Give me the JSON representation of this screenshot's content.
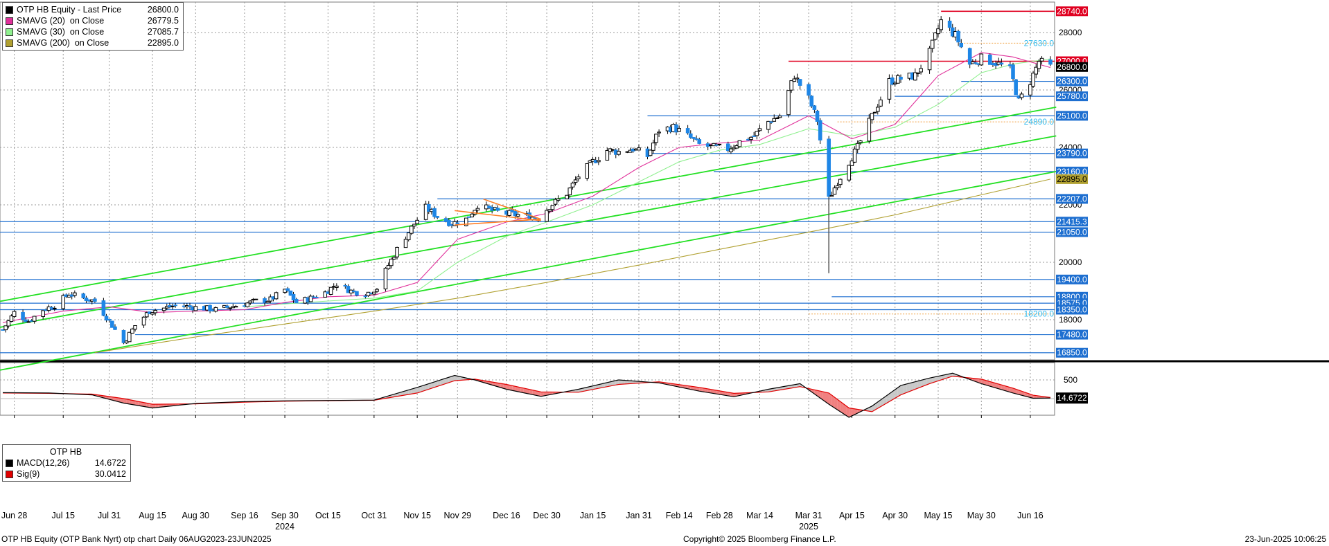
{
  "legend": {
    "items": [
      {
        "name": "OTP HB Equity - Last Price",
        "value": "26800.0",
        "color": "#000000"
      },
      {
        "name": "SMAVG (20)  on Close",
        "value": "26779.5",
        "color": "#e0309a"
      },
      {
        "name": "SMAVG (30)  on Close",
        "value": "27085.7",
        "color": "#8ff08f"
      },
      {
        "name": "SMAVG (200)  on Close",
        "value": "22895.0",
        "color": "#b0a030"
      }
    ]
  },
  "macd_legend": {
    "title": "OTP HB",
    "items": [
      {
        "name": "MACD(12,26)",
        "value": "14.6722",
        "color": "#000000"
      },
      {
        "name": "Sig(9)",
        "value": "30.0412",
        "color": "#e00000"
      }
    ]
  },
  "footer": {
    "left": "OTP HB Equity (OTP Bank Nyrt) otp chart  Daily 06AUG2023-23JUN2025",
    "center": "Copyright© 2025 Bloomberg Finance L.P.",
    "right": "23-Jun-2025 10:06:25"
  },
  "chart_data": {
    "type": "candlestick",
    "title": "OTP HB Equity - Last Price",
    "y_ticks": [
      18000,
      20000,
      22000,
      24000,
      26000,
      28000
    ],
    "ylim": [
      16800,
      29200
    ],
    "macd_ticks": [
      500
    ],
    "x_labels": [
      {
        "label": "Jun 28",
        "date": "2024-06-28"
      },
      {
        "label": "Jul 15",
        "date": "2024-07-15"
      },
      {
        "label": "Jul 31",
        "date": "2024-07-31"
      },
      {
        "label": "Aug 15",
        "date": "2024-08-15"
      },
      {
        "label": "Aug 30",
        "date": "2024-08-30"
      },
      {
        "label": "Sep 16",
        "date": "2024-09-16"
      },
      {
        "label": "Sep 30",
        "date": "2024-09-30"
      },
      {
        "label": "Oct 15",
        "date": "2024-10-15"
      },
      {
        "label": "Oct 31",
        "date": "2024-10-31"
      },
      {
        "label": "Nov 15",
        "date": "2024-11-15"
      },
      {
        "label": "Nov 29",
        "date": "2024-11-29"
      },
      {
        "label": "Dec 16",
        "date": "2024-12-16"
      },
      {
        "label": "Dec 30",
        "date": "2024-12-30"
      },
      {
        "label": "Jan 15",
        "date": "2025-01-15"
      },
      {
        "label": "Jan 31",
        "date": "2025-01-31"
      },
      {
        "label": "Feb 14",
        "date": "2025-02-14"
      },
      {
        "label": "Feb 28",
        "date": "2025-02-28"
      },
      {
        "label": "Mar 14",
        "date": "2025-03-14"
      },
      {
        "label": "Mar 31",
        "date": "2025-03-31"
      },
      {
        "label": "Apr 15",
        "date": "2025-04-15"
      },
      {
        "label": "Apr 30",
        "date": "2025-04-30"
      },
      {
        "label": "May 15",
        "date": "2025-05-15"
      },
      {
        "label": "May 30",
        "date": "2025-05-30"
      },
      {
        "label": "Jun 16",
        "date": "2025-06-16"
      }
    ],
    "year_labels": [
      {
        "label": "2024",
        "date": "2024-09-30"
      },
      {
        "label": "2025",
        "date": "2025-03-31"
      }
    ],
    "close_path": [
      [
        "2024-06-24",
        17650
      ],
      [
        "2024-06-28",
        18250
      ],
      [
        "2024-07-03",
        17950
      ],
      [
        "2024-07-08",
        18350
      ],
      [
        "2024-07-12",
        18500
      ],
      [
        "2024-07-17",
        18900
      ],
      [
        "2024-07-22",
        18750
      ],
      [
        "2024-07-26",
        18650
      ],
      [
        "2024-07-31",
        17950
      ],
      [
        "2024-08-05",
        17200
      ],
      [
        "2024-08-09",
        17800
      ],
      [
        "2024-08-14",
        18300
      ],
      [
        "2024-08-19",
        18400
      ],
      [
        "2024-08-23",
        18500
      ],
      [
        "2024-08-28",
        18450
      ],
      [
        "2024-09-02",
        18400
      ],
      [
        "2024-09-06",
        18350
      ],
      [
        "2024-09-11",
        18450
      ],
      [
        "2024-09-16",
        18550
      ],
      [
        "2024-09-20",
        18650
      ],
      [
        "2024-09-25",
        18700
      ],
      [
        "2024-09-30",
        19050
      ],
      [
        "2024-10-04",
        18600
      ],
      [
        "2024-10-09",
        18750
      ],
      [
        "2024-10-14",
        18950
      ],
      [
        "2024-10-18",
        19250
      ],
      [
        "2024-10-23",
        19000
      ],
      [
        "2024-10-28",
        18900
      ],
      [
        "2024-11-01",
        19100
      ],
      [
        "2024-11-05",
        19900
      ],
      [
        "2024-11-08",
        20450
      ],
      [
        "2024-11-13",
        21200
      ],
      [
        "2024-11-18",
        21900
      ],
      [
        "2024-11-22",
        21600
      ],
      [
        "2024-11-27",
        21350
      ],
      [
        "2024-12-02",
        21500
      ],
      [
        "2024-12-06",
        22000
      ],
      [
        "2024-12-11",
        21800
      ],
      [
        "2024-12-16",
        21700
      ],
      [
        "2024-12-20",
        21650
      ],
      [
        "2024-12-27",
        21550
      ],
      [
        "2024-12-31",
        21950
      ],
      [
        "2025-01-06",
        22400
      ],
      [
        "2025-01-10",
        23000
      ],
      [
        "2025-01-15",
        23500
      ],
      [
        "2025-01-20",
        23900
      ],
      [
        "2025-01-24",
        23850
      ],
      [
        "2025-01-29",
        23950
      ],
      [
        "2025-02-03",
        23700
      ],
      [
        "2025-02-07",
        24600
      ],
      [
        "2025-02-12",
        24700
      ],
      [
        "2025-02-17",
        24400
      ],
      [
        "2025-02-21",
        24100
      ],
      [
        "2025-02-26",
        24000
      ],
      [
        "2025-03-03",
        23950
      ],
      [
        "2025-03-07",
        24200
      ],
      [
        "2025-03-12",
        24400
      ],
      [
        "2025-03-17",
        24900
      ],
      [
        "2025-03-21",
        25100
      ],
      [
        "2025-03-26",
        26500
      ],
      [
        "2025-03-31",
        25700
      ],
      [
        "2025-04-03",
        24950
      ],
      [
        "2025-04-07",
        22200
      ],
      [
        "2025-04-10",
        22800
      ],
      [
        "2025-04-14",
        23500
      ],
      [
        "2025-04-17",
        24000
      ],
      [
        "2025-04-23",
        25300
      ],
      [
        "2025-04-28",
        26300
      ],
      [
        "2025-05-02",
        26400
      ],
      [
        "2025-05-07",
        26500
      ],
      [
        "2025-05-12",
        27300
      ],
      [
        "2025-05-16",
        28400
      ],
      [
        "2025-05-21",
        27900
      ],
      [
        "2025-05-26",
        26900
      ],
      [
        "2025-05-30",
        27100
      ],
      [
        "2025-06-04",
        26950
      ],
      [
        "2025-06-09",
        26700
      ],
      [
        "2025-06-12",
        25600
      ],
      [
        "2025-06-16",
        26300
      ],
      [
        "2025-06-19",
        27000
      ],
      [
        "2025-06-23",
        26800
      ]
    ],
    "sma20_path": [
      [
        "2024-06-24",
        17900
      ],
      [
        "2024-07-15",
        18300
      ],
      [
        "2024-07-31",
        18450
      ],
      [
        "2024-08-15",
        18250
      ],
      [
        "2024-08-30",
        18300
      ],
      [
        "2024-09-16",
        18350
      ],
      [
        "2024-09-30",
        18600
      ],
      [
        "2024-10-15",
        18800
      ],
      [
        "2024-10-31",
        18850
      ],
      [
        "2024-11-15",
        19300
      ],
      [
        "2024-11-29",
        20800
      ],
      [
        "2024-12-16",
        21400
      ],
      [
        "2024-12-30",
        21700
      ],
      [
        "2025-01-15",
        22300
      ],
      [
        "2025-01-31",
        23300
      ],
      [
        "2025-02-14",
        24000
      ],
      [
        "2025-02-28",
        24150
      ],
      [
        "2025-03-14",
        24250
      ],
      [
        "2025-03-31",
        25100
      ],
      [
        "2025-04-15",
        24300
      ],
      [
        "2025-04-30",
        24800
      ],
      [
        "2025-05-15",
        26500
      ],
      [
        "2025-05-30",
        27300
      ],
      [
        "2025-06-10",
        27150
      ],
      [
        "2025-06-23",
        26780
      ]
    ],
    "sma30_path": [
      [
        "2024-09-16",
        18450
      ],
      [
        "2024-09-30",
        18550
      ],
      [
        "2024-10-15",
        18650
      ],
      [
        "2024-10-31",
        18750
      ],
      [
        "2024-11-15",
        19000
      ],
      [
        "2024-11-29",
        20000
      ],
      [
        "2024-12-16",
        20900
      ],
      [
        "2024-12-30",
        21400
      ],
      [
        "2025-01-15",
        22000
      ],
      [
        "2025-01-31",
        22800
      ],
      [
        "2025-02-14",
        23500
      ],
      [
        "2025-02-28",
        23900
      ],
      [
        "2025-03-14",
        24100
      ],
      [
        "2025-03-31",
        24650
      ],
      [
        "2025-04-15",
        24400
      ],
      [
        "2025-04-30",
        24700
      ],
      [
        "2025-05-15",
        25500
      ],
      [
        "2025-05-30",
        26600
      ],
      [
        "2025-06-10",
        26900
      ],
      [
        "2025-06-23",
        27085
      ]
    ],
    "sma200_path": [
      [
        "2024-07-26",
        16850
      ],
      [
        "2024-08-30",
        17400
      ],
      [
        "2024-09-30",
        17850
      ],
      [
        "2024-10-31",
        18300
      ],
      [
        "2024-11-29",
        18750
      ],
      [
        "2024-12-30",
        19300
      ],
      [
        "2025-01-31",
        19900
      ],
      [
        "2025-02-28",
        20450
      ],
      [
        "2025-03-31",
        21050
      ],
      [
        "2025-04-30",
        21650
      ],
      [
        "2025-05-30",
        22350
      ],
      [
        "2025-06-23",
        22895
      ]
    ],
    "channel_lines": [
      {
        "from": [
          "2024-06-10",
          18400
        ],
        "to": [
          "2025-06-25",
          25400
        ]
      },
      {
        "from": [
          "2024-06-10",
          17500
        ],
        "to": [
          "2025-06-25",
          24400
        ]
      },
      {
        "from": [
          "2024-06-10",
          16000
        ],
        "to": [
          "2025-06-25",
          23160
        ]
      }
    ],
    "triangle": [
      {
        "from": [
          "2024-11-28",
          21800
        ],
        "to": [
          "2024-12-28",
          21450
        ]
      },
      {
        "from": [
          "2024-11-28",
          21300
        ],
        "to": [
          "2024-12-28",
          21500
        ]
      },
      {
        "from": [
          "2024-12-08",
          22200
        ],
        "to": [
          "2024-12-28",
          21500
        ]
      }
    ],
    "levels": [
      {
        "value": 28740,
        "label": "28740.0",
        "kind": "resistance",
        "from": "2025-05-16"
      },
      {
        "value": 27630,
        "label": "27630.0",
        "kind": "text",
        "from": "2025-05-23"
      },
      {
        "value": 27000,
        "label": "27000.0",
        "kind": "resistance",
        "from": "2025-03-24"
      },
      {
        "value": 26800,
        "label": "26800.0",
        "kind": "last",
        "from": null
      },
      {
        "value": 26300,
        "label": "26300.0",
        "kind": "support",
        "from": "2025-05-23"
      },
      {
        "value": 25780,
        "label": "25780.0",
        "kind": "support",
        "from": "2025-04-30"
      },
      {
        "value": 25100,
        "label": "25100.0",
        "kind": "support",
        "from": "2025-02-03"
      },
      {
        "value": 24890,
        "label": "24890.0",
        "kind": "text",
        "from": "2025-04-10"
      },
      {
        "value": 23790,
        "label": "23790.0",
        "kind": "support",
        "from": "2025-02-03"
      },
      {
        "value": 23160,
        "label": "23160.0",
        "kind": "support",
        "from": "2025-02-26"
      },
      {
        "value": 22895,
        "label": "22895.0",
        "kind": "sma200",
        "from": null
      },
      {
        "value": 22207,
        "label": "22207.0",
        "kind": "support",
        "from": "2024-11-22"
      },
      {
        "value": 21415.3,
        "label": "21415.3",
        "kind": "support",
        "from": "2024-06-20"
      },
      {
        "value": 21050,
        "label": "21050.0",
        "kind": "support",
        "from": "2024-06-20"
      },
      {
        "value": 19400,
        "label": "19400.0",
        "kind": "support",
        "from": "2024-06-20"
      },
      {
        "value": 18800,
        "label": "18800.0",
        "kind": "support",
        "from": "2025-04-08"
      },
      {
        "value": 18575,
        "label": "18575.0",
        "kind": "support",
        "from": "2024-06-20"
      },
      {
        "value": 18350,
        "label": "18350.0",
        "kind": "support",
        "from": "2024-06-20"
      },
      {
        "value": 18200,
        "label": "18200.0",
        "kind": "text",
        "from": "2025-03-31"
      },
      {
        "value": 17480,
        "label": "17480.0",
        "kind": "support",
        "from": "2024-08-09"
      },
      {
        "value": 16850,
        "label": "16850.0",
        "kind": "support",
        "from": "2024-06-20"
      }
    ],
    "macd_path": [
      [
        "2024-06-24",
        160
      ],
      [
        "2024-07-10",
        150
      ],
      [
        "2024-07-25",
        100
      ],
      [
        "2024-08-05",
        -120
      ],
      [
        "2024-08-15",
        -250
      ],
      [
        "2024-08-30",
        -130
      ],
      [
        "2024-09-16",
        -80
      ],
      [
        "2024-09-30",
        -60
      ],
      [
        "2024-10-15",
        -50
      ],
      [
        "2024-10-31",
        -40
      ],
      [
        "2024-11-15",
        300
      ],
      [
        "2024-11-28",
        620
      ],
      [
        "2024-12-05",
        500
      ],
      [
        "2024-12-16",
        250
      ],
      [
        "2024-12-28",
        60
      ],
      [
        "2025-01-10",
        250
      ],
      [
        "2025-01-24",
        500
      ],
      [
        "2025-02-07",
        420
      ],
      [
        "2025-02-21",
        200
      ],
      [
        "2025-03-05",
        50
      ],
      [
        "2025-03-17",
        250
      ],
      [
        "2025-03-28",
        400
      ],
      [
        "2025-04-07",
        -150
      ],
      [
        "2025-04-14",
        -500
      ],
      [
        "2025-04-22",
        -200
      ],
      [
        "2025-05-02",
        350
      ],
      [
        "2025-05-12",
        550
      ],
      [
        "2025-05-20",
        680
      ],
      [
        "2025-05-30",
        400
      ],
      [
        "2025-06-10",
        150
      ],
      [
        "2025-06-17",
        10
      ],
      [
        "2025-06-23",
        14.67
      ]
    ],
    "signal_path": [
      [
        "2024-06-24",
        150
      ],
      [
        "2024-07-10",
        140
      ],
      [
        "2024-07-25",
        120
      ],
      [
        "2024-08-05",
        0
      ],
      [
        "2024-08-15",
        -150
      ],
      [
        "2024-08-30",
        -140
      ],
      [
        "2024-09-16",
        -95
      ],
      [
        "2024-09-30",
        -70
      ],
      [
        "2024-10-15",
        -55
      ],
      [
        "2024-10-31",
        -45
      ],
      [
        "2024-11-15",
        150
      ],
      [
        "2024-11-28",
        480
      ],
      [
        "2024-12-05",
        520
      ],
      [
        "2024-12-16",
        380
      ],
      [
        "2024-12-28",
        180
      ],
      [
        "2025-01-10",
        170
      ],
      [
        "2025-01-24",
        380
      ],
      [
        "2025-02-07",
        450
      ],
      [
        "2025-02-21",
        300
      ],
      [
        "2025-03-05",
        140
      ],
      [
        "2025-03-17",
        180
      ],
      [
        "2025-03-28",
        320
      ],
      [
        "2025-04-07",
        150
      ],
      [
        "2025-04-14",
        -250
      ],
      [
        "2025-04-22",
        -350
      ],
      [
        "2025-05-02",
        100
      ],
      [
        "2025-05-12",
        400
      ],
      [
        "2025-05-20",
        600
      ],
      [
        "2025-05-30",
        520
      ],
      [
        "2025-06-10",
        280
      ],
      [
        "2025-06-17",
        90
      ],
      [
        "2025-06-23",
        30.04
      ]
    ],
    "macd_last_label": "14.6722",
    "colors": {
      "candle_up": "#000000",
      "candle_down": "#1e86e6",
      "support": "#1e6fd0",
      "resistance": "#e00020",
      "channel": "#22e022",
      "triangle": "#ff7f27",
      "sma20": "#e0309a",
      "sma30": "#8ff08f",
      "sma200": "#b0a030",
      "text_level": "#33bbee",
      "macd_fill_pos": "#c8c8c8",
      "macd_fill_neg": "#f08080"
    }
  }
}
